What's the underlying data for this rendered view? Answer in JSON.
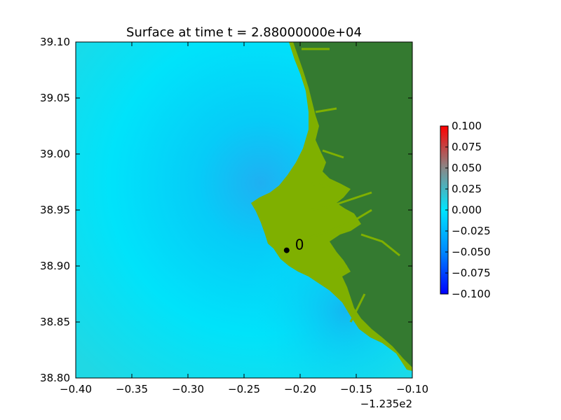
{
  "chart_data": {
    "type": "heatmap",
    "title": "Surface at time t = 2.88000000e+04",
    "xlabel": "",
    "ylabel": "",
    "x_offset_label": "−1.235e2",
    "xlim": [
      -0.4,
      -0.1
    ],
    "ylim": [
      38.8,
      39.1
    ],
    "x_ticks": [
      "−0.40",
      "−0.35",
      "−0.30",
      "−0.25",
      "−0.20",
      "−0.15",
      "−0.10"
    ],
    "x_tick_values": [
      -0.4,
      -0.35,
      -0.3,
      -0.25,
      -0.2,
      -0.15,
      -0.1
    ],
    "y_ticks": [
      "38.80",
      "38.85",
      "38.90",
      "38.95",
      "39.00",
      "39.05",
      "39.10"
    ],
    "y_tick_values": [
      38.8,
      38.85,
      38.9,
      38.95,
      39.0,
      39.05,
      39.1
    ],
    "colorbar": {
      "range": [
        -0.1,
        0.1
      ],
      "ticks": [
        "−0.100",
        "−0.075",
        "−0.050",
        "−0.025",
        "0.000",
        "0.025",
        "0.050",
        "0.075",
        "0.100"
      ],
      "tick_values": [
        -0.1,
        -0.075,
        -0.05,
        -0.025,
        0.0,
        0.025,
        0.05,
        0.075,
        0.1
      ],
      "colors": [
        "#0000ff",
        "#0088ff",
        "#00e5ff",
        "#888888",
        "#ff0000"
      ]
    },
    "gauge": {
      "label": "0",
      "x": -0.212,
      "y": 38.914
    },
    "colors": {
      "water": "#00e3f7",
      "land_low": "#7fb000",
      "land_high": "#347a30"
    }
  }
}
